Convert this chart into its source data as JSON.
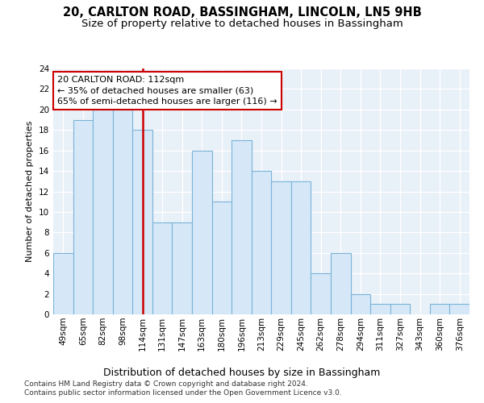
{
  "title1": "20, CARLTON ROAD, BASSINGHAM, LINCOLN, LN5 9HB",
  "title2": "Size of property relative to detached houses in Bassingham",
  "xlabel": "Distribution of detached houses by size in Bassingham",
  "ylabel": "Number of detached properties",
  "categories": [
    "49sqm",
    "65sqm",
    "82sqm",
    "98sqm",
    "114sqm",
    "131sqm",
    "147sqm",
    "163sqm",
    "180sqm",
    "196sqm",
    "213sqm",
    "229sqm",
    "245sqm",
    "262sqm",
    "278sqm",
    "294sqm",
    "311sqm",
    "327sqm",
    "343sqm",
    "360sqm",
    "376sqm"
  ],
  "values": [
    6,
    19,
    20,
    20,
    18,
    9,
    9,
    16,
    11,
    17,
    14,
    13,
    13,
    4,
    6,
    2,
    1,
    1,
    0,
    1,
    1
  ],
  "bar_color": "#d6e8f7",
  "bar_edge_color": "#7ab3d9",
  "vline_x_index": 4,
  "vline_color": "#cc0000",
  "annotation_line1": "20 CARLTON ROAD: 112sqm",
  "annotation_line2": "← 35% of detached houses are smaller (63)",
  "annotation_line3": "65% of semi-detached houses are larger (116) →",
  "annotation_box_color": "white",
  "annotation_box_edge": "#cc0000",
  "ylim": [
    0,
    24
  ],
  "yticks": [
    0,
    2,
    4,
    6,
    8,
    10,
    12,
    14,
    16,
    18,
    20,
    22,
    24
  ],
  "footnote1": "Contains HM Land Registry data © Crown copyright and database right 2024.",
  "footnote2": "Contains public sector information licensed under the Open Government Licence v3.0.",
  "title1_fontsize": 10.5,
  "title2_fontsize": 9.5,
  "xlabel_fontsize": 9,
  "ylabel_fontsize": 8,
  "tick_fontsize": 7.5,
  "annotation_fontsize": 8,
  "footnote_fontsize": 6.5,
  "plot_bg": "#e8f0f8",
  "grid_color": "#ffffff",
  "fig_bg": "#ffffff"
}
